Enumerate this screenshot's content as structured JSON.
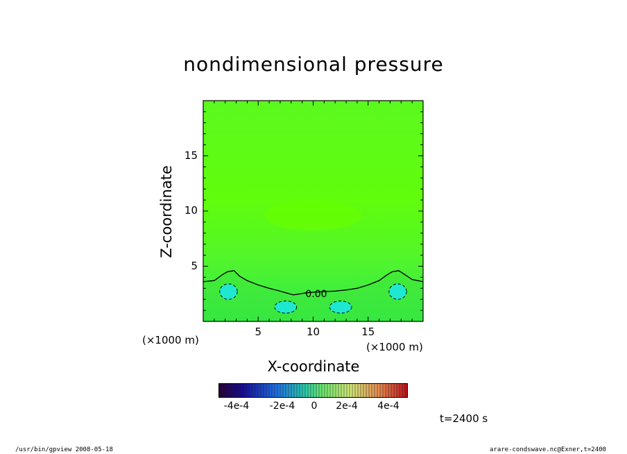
{
  "chart_data": {
    "type": "heatmap",
    "title": "nondimensional pressure",
    "xlabel": "X-coordinate",
    "ylabel": "Z-coordinate",
    "x_unit_label": "(×1000 m)",
    "y_unit_label": "(×1000 m)",
    "xlim": [
      0,
      20
    ],
    "ylim": [
      0,
      20
    ],
    "xticks": [
      "5",
      "10",
      "15"
    ],
    "yticks": [
      "5",
      "10",
      "15"
    ],
    "xtick_values": [
      5,
      10,
      15
    ],
    "ytick_values": [
      5,
      10,
      15
    ],
    "contour_label": "0.00",
    "zero_contour": [
      [
        0,
        3.6
      ],
      [
        1,
        3.7
      ],
      [
        1.7,
        4.2
      ],
      [
        2.2,
        4.5
      ],
      [
        2.8,
        4.6
      ],
      [
        3.3,
        4.1
      ],
      [
        4,
        3.7
      ],
      [
        5,
        3.3
      ],
      [
        6,
        3.0
      ],
      [
        6.8,
        2.8
      ],
      [
        7.5,
        2.6
      ],
      [
        8.2,
        2.4
      ],
      [
        8.8,
        2.5
      ],
      [
        9.4,
        2.6
      ],
      [
        10,
        2.65
      ],
      [
        11,
        2.7
      ],
      [
        12,
        2.75
      ],
      [
        13,
        2.85
      ],
      [
        14,
        3.0
      ],
      [
        15,
        3.3
      ],
      [
        16,
        3.7
      ],
      [
        16.7,
        4.2
      ],
      [
        17.2,
        4.5
      ],
      [
        17.8,
        4.6
      ],
      [
        18.4,
        4.2
      ],
      [
        19,
        3.8
      ],
      [
        20,
        3.6
      ]
    ],
    "negative_regions": [
      {
        "cx": 2.3,
        "cz": 2.7,
        "rx": 0.8,
        "rz": 0.7
      },
      {
        "cx": 7.5,
        "cz": 1.3,
        "rx": 1.0,
        "rz": 0.55
      },
      {
        "cx": 12.5,
        "cz": 1.3,
        "rx": 1.0,
        "rz": 0.55
      },
      {
        "cx": 17.7,
        "cz": 2.7,
        "rx": 0.8,
        "rz": 0.7
      }
    ],
    "colorbar": {
      "ticks": [
        "-4e-4",
        "-2e-4",
        "0",
        "2e-4",
        "4e-4"
      ],
      "tick_values": [
        -0.0004,
        -0.0002,
        0,
        0.0002,
        0.0004
      ],
      "range": [
        -0.0005,
        0.0005
      ]
    },
    "colors": {
      "background_field": "#5cf91f",
      "upper_field": "#66ff00",
      "low_green": "#22e84a",
      "negative_fill": "#1fe8d0",
      "contour": "#000000"
    }
  },
  "annotations": {
    "time": "t=2400 s",
    "footer_left": "/usr/bin/gpview   2008-05-18",
    "footer_right": "arare-condswave.nc@Exner,t=2400"
  }
}
